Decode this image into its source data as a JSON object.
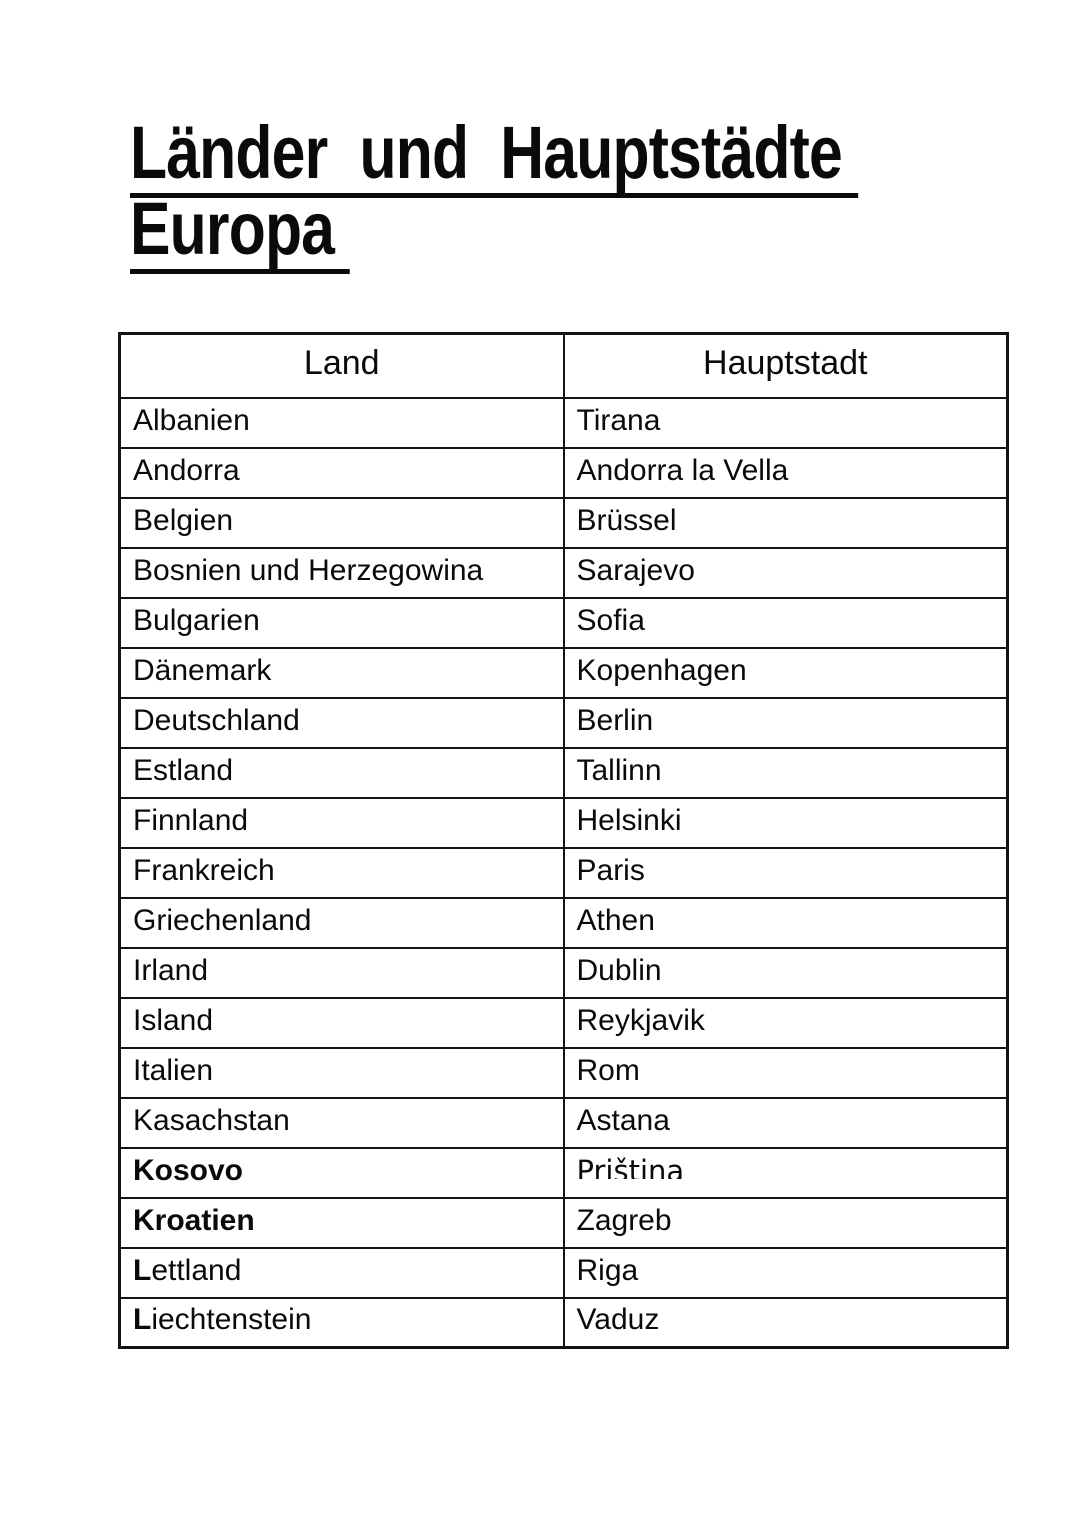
{
  "page": {
    "title_line1": "Länder  und  Hauptstädte ",
    "title_line2": "Europa "
  },
  "table": {
    "headers": {
      "land": "Land",
      "hauptstadt": "Hauptstadt"
    },
    "rows": [
      {
        "land": "Albanien",
        "hauptstadt": "Tirana"
      },
      {
        "land": "Andorra",
        "hauptstadt": "Andorra la Vella"
      },
      {
        "land": "Belgien",
        "hauptstadt": "Brüssel"
      },
      {
        "land": "Bosnien und Herzegowina",
        "hauptstadt": "Sarajevo"
      },
      {
        "land": "Bulgarien",
        "hauptstadt": "Sofia"
      },
      {
        "land": "Dänemark",
        "hauptstadt": "Kopenhagen"
      },
      {
        "land": "Deutschland",
        "hauptstadt": "Berlin"
      },
      {
        "land": "Estland",
        "hauptstadt": "Tallinn"
      },
      {
        "land": "Finnland",
        "hauptstadt": "Helsinki"
      },
      {
        "land": "Frankreich",
        "hauptstadt": "Paris"
      },
      {
        "land": "Griechenland",
        "hauptstadt": "Athen"
      },
      {
        "land": "Irland",
        "hauptstadt": "Dublin"
      },
      {
        "land": "Island",
        "hauptstadt": "Reykjavik"
      },
      {
        "land": "Italien",
        "hauptstadt": "Rom"
      },
      {
        "land": "Kasachstan",
        "hauptstadt": "Astana"
      },
      {
        "land": "Kosovo",
        "hauptstadt": "Priština",
        "land_bold": true,
        "capital_alt_font": true,
        "whiteout_above_capital": true
      },
      {
        "land": "Kroatien",
        "hauptstadt": "Zagreb",
        "land_bold": true
      },
      {
        "land": "Lettland",
        "hauptstadt": "Riga",
        "land_bold_first_letter": true
      },
      {
        "land": "Liechtenstein",
        "hauptstadt": "Vaduz",
        "land_bold_first_letter": true
      }
    ]
  }
}
